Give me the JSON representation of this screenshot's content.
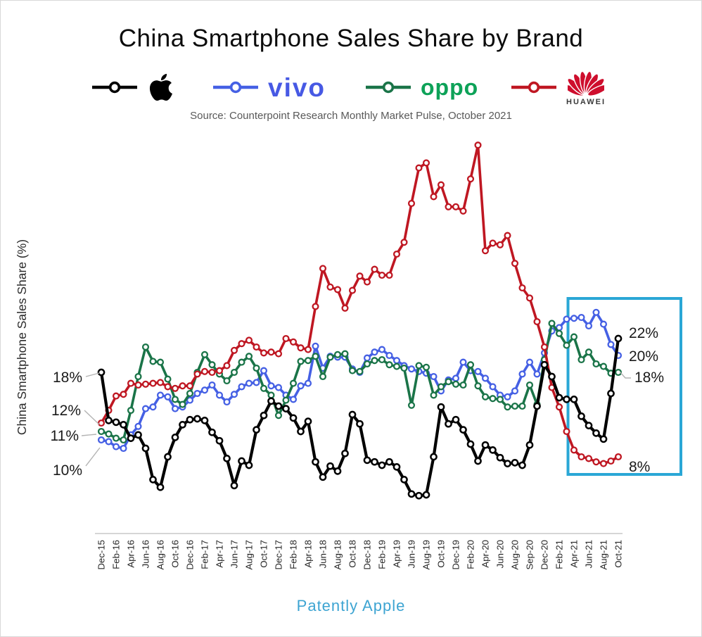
{
  "page": {
    "title": "China Smartphone Sales Share by Brand",
    "source_note": "Source: Counterpoint Research Monthly Market Pulse, October 2021",
    "footer": "Patently Apple",
    "footer_color": "#3da4d2",
    "background": "#ffffff",
    "border_color": "#d8d8d8"
  },
  "legend": {
    "items": [
      {
        "name": "Apple",
        "logo": "apple-logo",
        "wordmark": "",
        "line_color": "#000000",
        "logo_color": "#000000"
      },
      {
        "name": "vivo",
        "logo": "vivo-wordmark",
        "wordmark": "vivo",
        "line_color": "#4560e4",
        "logo_color": "#4759e4"
      },
      {
        "name": "OPPO",
        "logo": "oppo-wordmark",
        "wordmark": "oppo",
        "line_color": "#1a7448",
        "logo_color": "#0da258"
      },
      {
        "name": "Huawei",
        "logo": "huawei-logo",
        "wordmark": "HUAWEI",
        "line_color": "#bf1722",
        "logo_color": "#ce0e2d"
      }
    ]
  },
  "chart_data": {
    "type": "line",
    "title": "China Smartphone Sales Share by Brand",
    "xlabel": "",
    "ylabel": "China Smartphone Sales Share (%)",
    "unit": "%",
    "ylim": [
      0,
      46
    ],
    "grid": false,
    "legend_position": "top",
    "x": [
      "Dec-15",
      "Jan-16",
      "Feb-16",
      "Mar-16",
      "Apr-16",
      "May-16",
      "Jun-16",
      "Jul-16",
      "Aug-16",
      "Sep-16",
      "Oct-16",
      "Nov-16",
      "Dec-16",
      "Jan-17",
      "Feb-17",
      "Mar-17",
      "Apr-17",
      "May-17",
      "Jun-17",
      "Jul-17",
      "Aug-17",
      "Sep-17",
      "Oct-17",
      "Nov-17",
      "Dec-17",
      "Jan-18",
      "Feb-18",
      "Mar-18",
      "Apr-18",
      "May-18",
      "Jun-18",
      "Jul-18",
      "Aug-18",
      "Sep-18",
      "Oct-18",
      "Nov-18",
      "Dec-18",
      "Jan-19",
      "Feb-19",
      "Mar-19",
      "Apr-19",
      "May-19",
      "Jun-19",
      "Jul-19",
      "Aug-19",
      "Sep-19",
      "Oct-19",
      "Nov-19",
      "Dec-19",
      "Jan-20",
      "Feb-20",
      "Mar-20",
      "Apr-20",
      "May-20",
      "Jun-20",
      "Jul-20",
      "Aug-20",
      "Sep-20",
      "Oct-20",
      "Nov-20",
      "Dec-20",
      "Jan-21",
      "Feb-21",
      "Mar-21",
      "Apr-21",
      "May-21",
      "Jun-21",
      "Jul-21",
      "Aug-21",
      "Sep-21",
      "Oct-21"
    ],
    "tick_labels": [
      "Dec-15",
      "Feb-16",
      "Apr-16",
      "Jun-16",
      "Aug-16",
      "Oct-16",
      "Dec-16",
      "Feb-17",
      "Apr-17",
      "Jun-17",
      "Aug-17",
      "Oct-17",
      "Dec-17",
      "Feb-18",
      "Apr-18",
      "Jun-18",
      "Aug-18",
      "Oct-18",
      "Dec-18",
      "Feb-19",
      "Apr-19",
      "Jun-19",
      "Aug-19",
      "Oct-19",
      "Dec-19",
      "Feb-20",
      "Apr-20",
      "Jun-20",
      "Aug-20",
      "Sep-20",
      "Dec-20",
      "Feb-21",
      "Apr-21",
      "Jun-21",
      "Aug-21",
      "Oct-21"
    ],
    "series": [
      {
        "name": "Apple",
        "color": "#000000",
        "values": [
          18.0,
          12.3,
          12.1,
          11.8,
          10.2,
          10.6,
          9.0,
          5.3,
          4.4,
          8.0,
          10.3,
          11.8,
          12.4,
          12.5,
          12.3,
          10.9,
          9.9,
          7.8,
          4.6,
          7.5,
          7.0,
          11.2,
          12.9,
          14.6,
          14.0,
          13.7,
          12.6,
          11.0,
          12.2,
          7.4,
          5.6,
          6.9,
          6.3,
          8.4,
          13.0,
          11.9,
          7.6,
          7.4,
          7.0,
          7.4,
          6.8,
          5.3,
          3.6,
          3.4,
          3.5,
          8.0,
          13.9,
          11.9,
          12.4,
          11.2,
          9.5,
          7.5,
          9.4,
          8.8,
          7.9,
          7.2,
          7.3,
          7.0,
          9.4,
          14.0,
          18.9,
          17.5,
          15.0,
          14.8,
          14.8,
          12.8,
          11.7,
          10.8,
          10.1,
          15.5,
          22.0
        ]
      },
      {
        "name": "vivo",
        "color": "#4560e4",
        "values": [
          10.0,
          9.8,
          9.2,
          9.0,
          10.6,
          11.6,
          13.7,
          13.9,
          15.3,
          15.1,
          13.7,
          13.9,
          14.7,
          15.5,
          15.9,
          16.5,
          15.3,
          14.5,
          15.4,
          16.3,
          16.7,
          16.8,
          18.2,
          16.4,
          16.2,
          15.3,
          14.8,
          16.4,
          16.7,
          21.1,
          18.5,
          19.9,
          19.8,
          19.8,
          18.4,
          18.0,
          19.7,
          20.4,
          20.7,
          20.0,
          19.4,
          18.8,
          18.4,
          18.1,
          17.9,
          17.5,
          15.8,
          17.1,
          17.3,
          19.2,
          18.2,
          18.1,
          17.3,
          16.3,
          15.3,
          15.1,
          15.8,
          17.8,
          19.2,
          17.8,
          20.3,
          22.9,
          23.3,
          24.3,
          24.4,
          24.5,
          23.5,
          25.1,
          23.7,
          21.3,
          20.0
        ]
      },
      {
        "name": "OPPO",
        "color": "#1a7448",
        "values": [
          11.0,
          10.7,
          10.2,
          10.0,
          13.5,
          17.5,
          21.0,
          19.3,
          19.2,
          17.2,
          14.8,
          14.2,
          15.5,
          18.0,
          20.1,
          18.9,
          17.8,
          17.0,
          18.0,
          19.2,
          19.9,
          18.5,
          16.1,
          15.3,
          12.9,
          14.7,
          16.7,
          19.3,
          19.4,
          19.9,
          17.5,
          19.8,
          20.1,
          20.2,
          18.2,
          18.1,
          19.0,
          19.4,
          19.5,
          18.9,
          18.7,
          18.5,
          14.1,
          18.8,
          18.6,
          15.3,
          16.3,
          16.9,
          16.6,
          16.5,
          18.9,
          16.4,
          15.1,
          14.9,
          14.8,
          13.9,
          14.0,
          14.0,
          16.5,
          14.2,
          19.5,
          23.8,
          22.6,
          21.2,
          22.2,
          19.5,
          20.4,
          19.0,
          18.7,
          17.9,
          18.0
        ]
      },
      {
        "name": "Huawei",
        "color": "#bf1722",
        "values": [
          12.0,
          13.5,
          15.2,
          15.4,
          16.7,
          16.5,
          16.6,
          16.7,
          16.8,
          16.3,
          16.1,
          16.4,
          16.4,
          17.8,
          18.1,
          18.0,
          18.2,
          18.8,
          20.6,
          21.4,
          21.8,
          21.0,
          20.3,
          20.4,
          20.2,
          22.0,
          21.6,
          20.9,
          20.7,
          25.8,
          30.3,
          28.1,
          27.8,
          25.6,
          27.7,
          29.4,
          28.7,
          30.2,
          29.5,
          29.5,
          32.0,
          33.4,
          38.0,
          42.2,
          42.8,
          38.8,
          40.2,
          37.6,
          37.6,
          37.1,
          40.9,
          44.9,
          32.4,
          33.3,
          33.1,
          34.2,
          30.9,
          28.0,
          26.8,
          24.0,
          21.0,
          16.2,
          13.9,
          11.0,
          8.8,
          8.0,
          7.8,
          7.4,
          7.2,
          7.5,
          8.0
        ]
      }
    ],
    "annotations": {
      "left": [
        {
          "label": "18%",
          "series": "Apple"
        },
        {
          "label": "12%",
          "series": "Huawei"
        },
        {
          "label": "11%",
          "series": "OPPO"
        },
        {
          "label": "10%",
          "series": "vivo"
        }
      ],
      "right": [
        {
          "label": "22%",
          "series": "Apple"
        },
        {
          "label": "20%",
          "series": "vivo"
        },
        {
          "label": "18%",
          "series": "OPPO"
        },
        {
          "label": "8%",
          "series": "Huawei"
        }
      ]
    },
    "highlight_box": {
      "from": "Mar-21",
      "to": "Oct-21",
      "color": "#2aa7d6"
    },
    "axis_line_color": "#c9c9c9",
    "leader_line_color": "#b3b3b3",
    "tick_color": "#262626",
    "callout_color": "#1a1a1a"
  }
}
